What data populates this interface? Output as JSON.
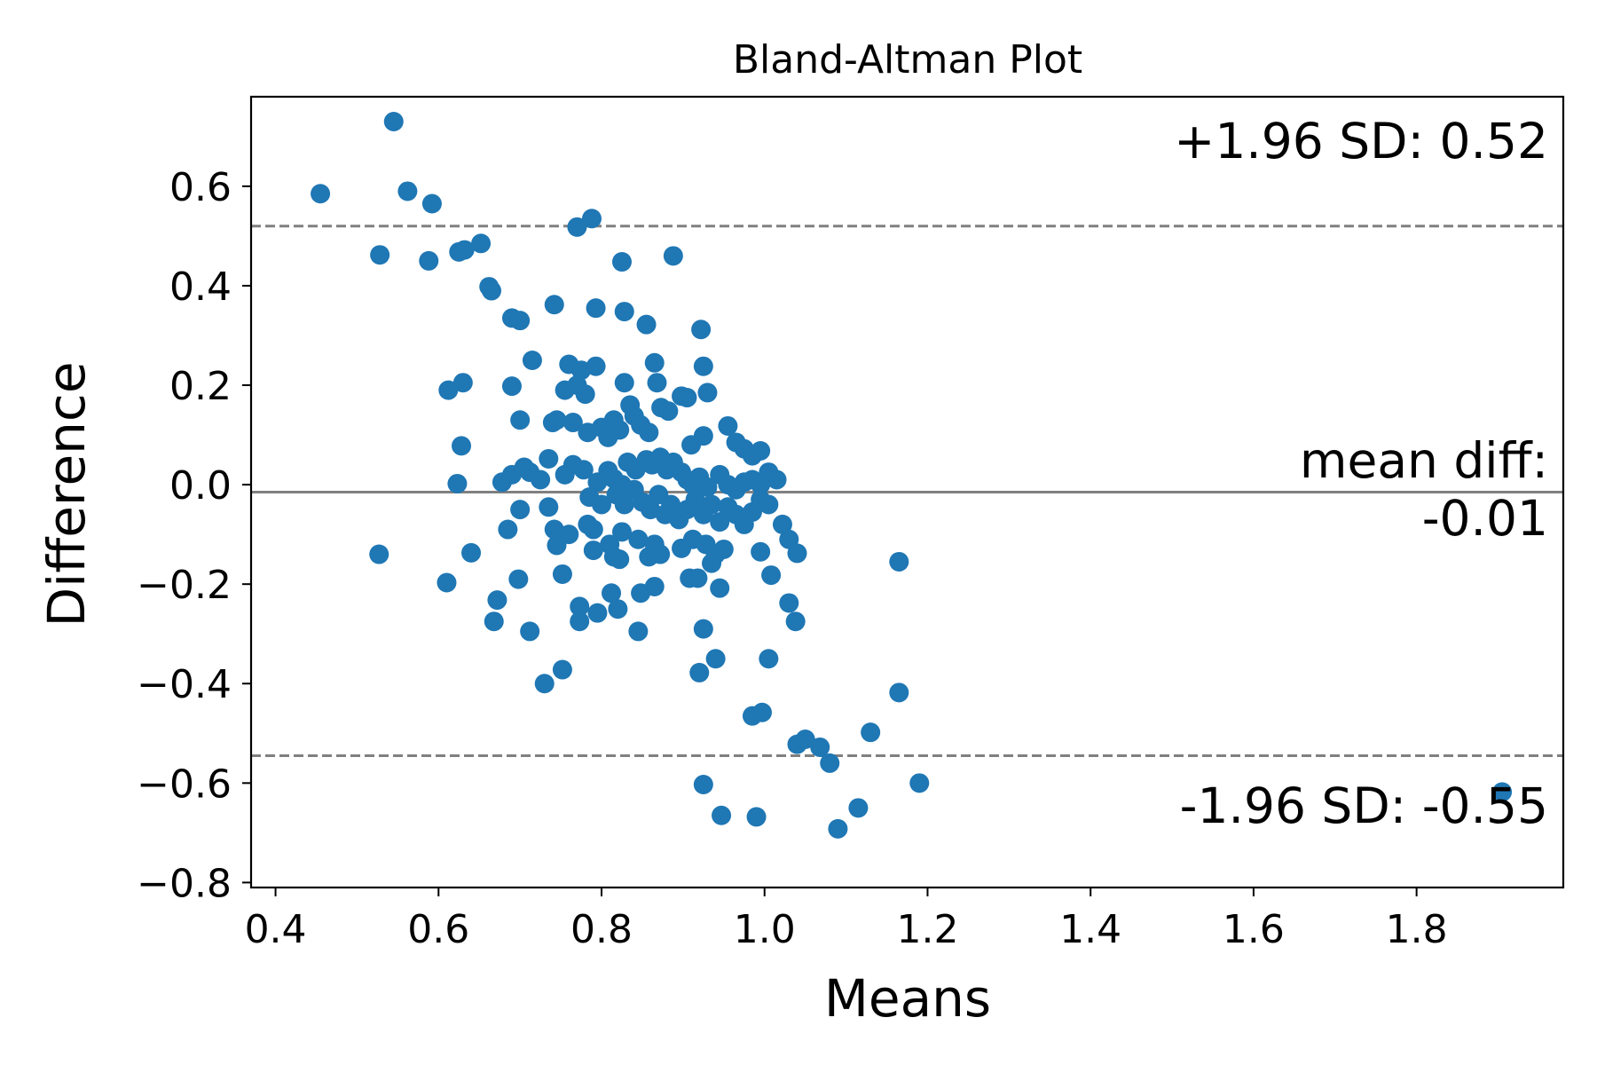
{
  "chart_data": {
    "type": "scatter",
    "title": "Bland-Altman Plot",
    "xlabel": "Means",
    "ylabel": "Difference",
    "xlim": [
      0.37,
      1.98
    ],
    "ylim": [
      -0.81,
      0.78
    ],
    "xticks": [
      0.4,
      0.6,
      0.8,
      1.0,
      1.2,
      1.4,
      1.6,
      1.8
    ],
    "xtick_labels": [
      "0.4",
      "0.6",
      "0.8",
      "1.0",
      "1.2",
      "1.4",
      "1.6",
      "1.8"
    ],
    "yticks": [
      0.6,
      0.4,
      0.2,
      0.0,
      -0.2,
      -0.4,
      -0.6,
      -0.8
    ],
    "ytick_labels": [
      "0.6",
      "0.4",
      "0.2",
      "0.0",
      "−0.2",
      "−0.4",
      "−0.6",
      "−0.8"
    ],
    "grid": false,
    "point_color": "#1f77b4",
    "line_color": "#808080",
    "reference_lines": [
      {
        "name": "+1.96 SD",
        "value": 0.52,
        "style": "dashed"
      },
      {
        "name": "mean diff",
        "value": -0.015,
        "style": "solid"
      },
      {
        "name": "-1.96 SD",
        "value": -0.545,
        "style": "dashed"
      }
    ],
    "annotations": {
      "upper": "+1.96 SD: 0.52",
      "mean_line1": "mean diff:",
      "mean_line2": "-0.01",
      "lower": "-1.96 SD: -0.55"
    },
    "points": [
      [
        0.455,
        0.585
      ],
      [
        0.545,
        0.73
      ],
      [
        0.562,
        0.59
      ],
      [
        0.592,
        0.565
      ],
      [
        0.528,
        0.462
      ],
      [
        0.588,
        0.45
      ],
      [
        0.625,
        0.468
      ],
      [
        0.632,
        0.472
      ],
      [
        0.652,
        0.485
      ],
      [
        0.662,
        0.398
      ],
      [
        0.665,
        0.39
      ],
      [
        0.69,
        0.335
      ],
      [
        0.7,
        0.33
      ],
      [
        0.742,
        0.362
      ],
      [
        0.77,
        0.518
      ],
      [
        0.788,
        0.535
      ],
      [
        0.793,
        0.355
      ],
      [
        0.825,
        0.448
      ],
      [
        0.828,
        0.348
      ],
      [
        0.855,
        0.322
      ],
      [
        0.888,
        0.46
      ],
      [
        0.922,
        0.312
      ],
      [
        0.715,
        0.25
      ],
      [
        0.612,
        0.19
      ],
      [
        0.63,
        0.205
      ],
      [
        0.69,
        0.198
      ],
      [
        0.7,
        0.13
      ],
      [
        0.628,
        0.078
      ],
      [
        0.74,
        0.125
      ],
      [
        0.745,
        0.13
      ],
      [
        0.755,
        0.19
      ],
      [
        0.765,
        0.125
      ],
      [
        0.76,
        0.242
      ],
      [
        0.775,
        0.23
      ],
      [
        0.78,
        0.182
      ],
      [
        0.77,
        0.2
      ],
      [
        0.793,
        0.238
      ],
      [
        0.783,
        0.105
      ],
      [
        0.8,
        0.115
      ],
      [
        0.808,
        0.095
      ],
      [
        0.815,
        0.13
      ],
      [
        0.822,
        0.11
      ],
      [
        0.828,
        0.205
      ],
      [
        0.835,
        0.16
      ],
      [
        0.84,
        0.138
      ],
      [
        0.848,
        0.12
      ],
      [
        0.858,
        0.105
      ],
      [
        0.865,
        0.245
      ],
      [
        0.868,
        0.205
      ],
      [
        0.873,
        0.155
      ],
      [
        0.882,
        0.148
      ],
      [
        0.898,
        0.178
      ],
      [
        0.905,
        0.175
      ],
      [
        0.925,
        0.238
      ],
      [
        0.93,
        0.185
      ],
      [
        0.925,
        0.098
      ],
      [
        0.91,
        0.08
      ],
      [
        0.955,
        0.118
      ],
      [
        0.965,
        0.085
      ],
      [
        0.975,
        0.072
      ],
      [
        0.985,
        0.058
      ],
      [
        0.995,
        0.068
      ],
      [
        0.623,
        0.002
      ],
      [
        0.678,
        0.005
      ],
      [
        0.69,
        0.02
      ],
      [
        0.705,
        0.035
      ],
      [
        0.712,
        0.025
      ],
      [
        0.725,
        0.01
      ],
      [
        0.735,
        0.052
      ],
      [
        0.755,
        0.02
      ],
      [
        0.765,
        0.04
      ],
      [
        0.778,
        0.03
      ],
      [
        0.795,
        0.005
      ],
      [
        0.808,
        0.028
      ],
      [
        0.815,
        0.012
      ],
      [
        0.825,
        0.0
      ],
      [
        0.832,
        0.045
      ],
      [
        0.842,
        0.03
      ],
      [
        0.855,
        0.05
      ],
      [
        0.862,
        0.04
      ],
      [
        0.872,
        0.055
      ],
      [
        0.88,
        0.03
      ],
      [
        0.888,
        0.045
      ],
      [
        0.898,
        0.025
      ],
      [
        0.905,
        0.01
      ],
      [
        0.912,
        0.0
      ],
      [
        0.92,
        0.015
      ],
      [
        0.93,
        -0.005
      ],
      [
        0.945,
        0.02
      ],
      [
        0.955,
        0.0
      ],
      [
        0.965,
        -0.01
      ],
      [
        0.975,
        0.005
      ],
      [
        0.985,
        0.01
      ],
      [
        0.995,
        0.0
      ],
      [
        1.005,
        0.025
      ],
      [
        1.015,
        0.01
      ],
      [
        0.785,
        -0.025
      ],
      [
        0.8,
        -0.04
      ],
      [
        0.818,
        -0.02
      ],
      [
        0.828,
        -0.04
      ],
      [
        0.84,
        -0.01
      ],
      [
        0.85,
        -0.035
      ],
      [
        0.86,
        -0.05
      ],
      [
        0.87,
        -0.02
      ],
      [
        0.878,
        -0.06
      ],
      [
        0.885,
        -0.04
      ],
      [
        0.895,
        -0.07
      ],
      [
        0.905,
        -0.05
      ],
      [
        0.915,
        -0.03
      ],
      [
        0.925,
        -0.06
      ],
      [
        0.935,
        -0.04
      ],
      [
        0.945,
        -0.075
      ],
      [
        0.955,
        -0.045
      ],
      [
        0.965,
        -0.06
      ],
      [
        0.975,
        -0.08
      ],
      [
        0.985,
        -0.055
      ],
      [
        0.995,
        -0.03
      ],
      [
        1.005,
        -0.04
      ],
      [
        0.7,
        -0.05
      ],
      [
        0.735,
        -0.045
      ],
      [
        0.742,
        -0.09
      ],
      [
        0.76,
        -0.1
      ],
      [
        0.783,
        -0.08
      ],
      [
        0.79,
        -0.09
      ],
      [
        0.81,
        -0.12
      ],
      [
        0.825,
        -0.095
      ],
      [
        0.845,
        -0.11
      ],
      [
        0.865,
        -0.12
      ],
      [
        0.872,
        -0.14
      ],
      [
        0.898,
        -0.128
      ],
      [
        0.912,
        -0.11
      ],
      [
        0.928,
        -0.12
      ],
      [
        0.94,
        -0.14
      ],
      [
        0.95,
        -0.13
      ],
      [
        0.745,
        -0.122
      ],
      [
        0.685,
        -0.09
      ],
      [
        0.79,
        -0.132
      ],
      [
        0.815,
        -0.145
      ],
      [
        0.822,
        -0.15
      ],
      [
        0.858,
        -0.145
      ],
      [
        0.868,
        -0.135
      ],
      [
        0.935,
        -0.158
      ],
      [
        0.995,
        -0.135
      ],
      [
        1.022,
        -0.08
      ],
      [
        1.03,
        -0.11
      ],
      [
        1.04,
        -0.138
      ],
      [
        0.527,
        -0.14
      ],
      [
        0.64,
        -0.137
      ],
      [
        0.61,
        -0.197
      ],
      [
        0.698,
        -0.19
      ],
      [
        0.672,
        -0.232
      ],
      [
        0.668,
        -0.275
      ],
      [
        0.712,
        -0.295
      ],
      [
        0.752,
        -0.18
      ],
      [
        0.773,
        -0.245
      ],
      [
        0.773,
        -0.275
      ],
      [
        0.795,
        -0.258
      ],
      [
        0.812,
        -0.218
      ],
      [
        0.82,
        -0.25
      ],
      [
        0.848,
        -0.218
      ],
      [
        0.845,
        -0.295
      ],
      [
        0.865,
        -0.205
      ],
      [
        0.908,
        -0.188
      ],
      [
        0.918,
        -0.188
      ],
      [
        0.925,
        -0.29
      ],
      [
        0.945,
        -0.208
      ],
      [
        1.008,
        -0.182
      ],
      [
        1.03,
        -0.238
      ],
      [
        1.038,
        -0.275
      ],
      [
        0.752,
        -0.372
      ],
      [
        0.73,
        -0.4
      ],
      [
        0.92,
        -0.378
      ],
      [
        0.94,
        -0.35
      ],
      [
        1.005,
        -0.35
      ],
      [
        0.985,
        -0.465
      ],
      [
        0.997,
        -0.458
      ],
      [
        1.04,
        -0.522
      ],
      [
        1.05,
        -0.512
      ],
      [
        1.068,
        -0.528
      ],
      [
        1.08,
        -0.56
      ],
      [
        1.13,
        -0.498
      ],
      [
        1.165,
        -0.155
      ],
      [
        1.165,
        -0.418
      ],
      [
        0.925,
        -0.603
      ],
      [
        0.947,
        -0.665
      ],
      [
        0.99,
        -0.668
      ],
      [
        1.09,
        -0.692
      ],
      [
        1.115,
        -0.65
      ],
      [
        1.19,
        -0.6
      ],
      [
        1.905,
        -0.618
      ]
    ]
  }
}
